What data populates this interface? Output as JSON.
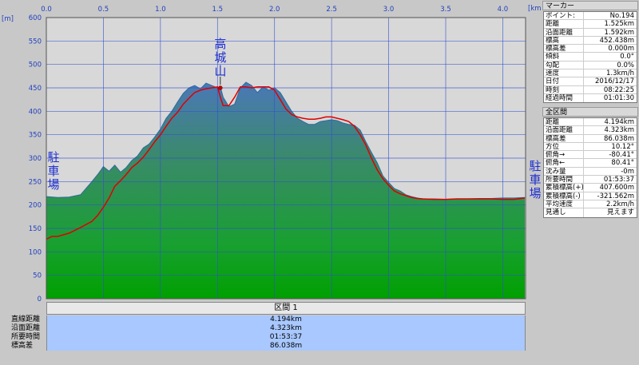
{
  "chart_data": {
    "type": "area",
    "x_unit_label": "[km]",
    "y_unit_label": "[m]",
    "xlim": [
      0,
      4.2
    ],
    "ylim": [
      0,
      600
    ],
    "x_ticks": [
      "0.0",
      "0.5",
      "1.0",
      "1.5",
      "2.0",
      "2.5",
      "3.0",
      "3.5",
      "4.0"
    ],
    "y_ticks": [
      "0",
      "50",
      "100",
      "150",
      "200",
      "250",
      "300",
      "350",
      "400",
      "450",
      "500",
      "550",
      "600"
    ],
    "grid": true,
    "series": [
      {
        "color": "#2e8a4a",
        "x": [
          0.0,
          0.1,
          0.2,
          0.3,
          0.4,
          0.45,
          0.5,
          0.55,
          0.6,
          0.65,
          0.7,
          0.75,
          0.8,
          0.85,
          0.9,
          0.95,
          1.0,
          1.05,
          1.1,
          1.15,
          1.2,
          1.25,
          1.3,
          1.35,
          1.4,
          1.45,
          1.5,
          1.525,
          1.55,
          1.6,
          1.65,
          1.7,
          1.75,
          1.8,
          1.85,
          1.9,
          1.95,
          2.0,
          2.05,
          2.1,
          2.15,
          2.2,
          2.25,
          2.3,
          2.35,
          2.4,
          2.45,
          2.5,
          2.55,
          2.6,
          2.65,
          2.7,
          2.75,
          2.8,
          2.85,
          2.9,
          2.95,
          3.0,
          3.05,
          3.1,
          3.15,
          3.2,
          3.25,
          3.3,
          3.4,
          3.5,
          3.6,
          3.7,
          3.8,
          3.9,
          4.0,
          4.1,
          4.194
        ],
        "y": [
          218,
          216,
          217,
          222,
          250,
          265,
          282,
          272,
          285,
          270,
          280,
          295,
          305,
          322,
          330,
          345,
          362,
          385,
          400,
          420,
          438,
          450,
          455,
          448,
          460,
          455,
          450,
          452,
          430,
          410,
          415,
          450,
          462,
          455,
          440,
          452,
          445,
          450,
          440,
          420,
          400,
          385,
          378,
          372,
          372,
          378,
          380,
          382,
          380,
          375,
          372,
          370,
          360,
          335,
          312,
          290,
          262,
          248,
          235,
          230,
          222,
          218,
          215,
          213,
          213,
          212,
          213,
          213,
          214,
          214,
          215,
          215,
          216
        ]
      },
      {
        "color": "#e00000",
        "x": [
          0.0,
          0.05,
          0.1,
          0.2,
          0.3,
          0.4,
          0.45,
          0.5,
          0.55,
          0.6,
          0.65,
          0.7,
          0.75,
          0.8,
          0.85,
          0.9,
          0.95,
          1.0,
          1.05,
          1.1,
          1.15,
          1.2,
          1.25,
          1.3,
          1.35,
          1.4,
          1.45,
          1.5,
          1.525,
          1.55,
          1.6,
          1.65,
          1.7,
          1.75,
          1.8,
          1.85,
          1.9,
          1.95,
          2.0,
          2.05,
          2.1,
          2.15,
          2.2,
          2.25,
          2.3,
          2.35,
          2.4,
          2.45,
          2.5,
          2.55,
          2.6,
          2.65,
          2.7,
          2.75,
          2.8,
          2.85,
          2.9,
          2.95,
          3.0,
          3.05,
          3.1,
          3.15,
          3.2,
          3.25,
          3.3,
          3.4,
          3.5,
          3.6,
          3.7,
          3.8,
          3.9,
          4.0,
          4.1,
          4.194
        ],
        "y": [
          127,
          133,
          133,
          140,
          152,
          165,
          178,
          195,
          215,
          240,
          252,
          265,
          280,
          290,
          302,
          318,
          335,
          350,
          368,
          385,
          398,
          415,
          428,
          440,
          445,
          448,
          450,
          452,
          430,
          412,
          412,
          430,
          452,
          452,
          450,
          452,
          452,
          452,
          445,
          425,
          405,
          393,
          388,
          385,
          383,
          383,
          385,
          388,
          388,
          385,
          382,
          378,
          368,
          350,
          328,
          300,
          275,
          256,
          242,
          230,
          224,
          220,
          216,
          214,
          213,
          212,
          212,
          213,
          213,
          213,
          213,
          212,
          212,
          215
        ]
      }
    ],
    "annotations": [
      {
        "text": "高城山",
        "x": 1.525,
        "y": 450
      },
      {
        "text": "駐車場",
        "side": "left"
      },
      {
        "text": "駐車場",
        "side": "right"
      }
    ]
  },
  "section_title": "区間 1",
  "bottom_rows": [
    {
      "label": "直線距離",
      "value": "4.194km"
    },
    {
      "label": "沿面距離",
      "value": "4.323km"
    },
    {
      "label": "所要時間",
      "value": "01:53:37"
    },
    {
      "label": "標高差",
      "value": "86.038m"
    }
  ],
  "marker_panel": {
    "title": "マーカー",
    "rows": [
      {
        "key": "ポイント:",
        "value": "No.194"
      },
      {
        "key": "距離",
        "value": "1.525km"
      },
      {
        "key": "沿面距離",
        "value": "1.592km"
      },
      {
        "key": "標高",
        "value": "452.438m"
      },
      {
        "key": "標高差",
        "value": "0.000m"
      },
      {
        "key": "傾斜",
        "value": "0.0°"
      },
      {
        "key": "勾配",
        "value": "0.0%"
      },
      {
        "key": "速度",
        "value": "1.3km/h"
      },
      {
        "key": "日付",
        "value": "2016/12/17"
      },
      {
        "key": "時刻",
        "value": "08:22:25"
      },
      {
        "key": "経過時間",
        "value": "01:01:30"
      }
    ]
  },
  "total_panel": {
    "title": "全区間",
    "rows": [
      {
        "key": "距離",
        "value": "4.194km"
      },
      {
        "key": "沿面距離",
        "value": "4.323km"
      },
      {
        "key": "標高差",
        "value": "86.038m"
      },
      {
        "key": "方位",
        "value": "10.12°"
      },
      {
        "key": "俯角→",
        "value": "-80.41°"
      },
      {
        "key": "俯角←",
        "value": "80.41°"
      },
      {
        "key": "沈み量",
        "value": "-0m"
      },
      {
        "key": "所要時間",
        "value": "01:53:37"
      },
      {
        "key": "累積標高(+)",
        "value": "407.600m"
      },
      {
        "key": "累積標高(-)",
        "value": "-321.562m"
      },
      {
        "key": "平均速度",
        "value": "2.2km/h"
      },
      {
        "key": "見通し",
        "value": "見えます"
      }
    ]
  }
}
